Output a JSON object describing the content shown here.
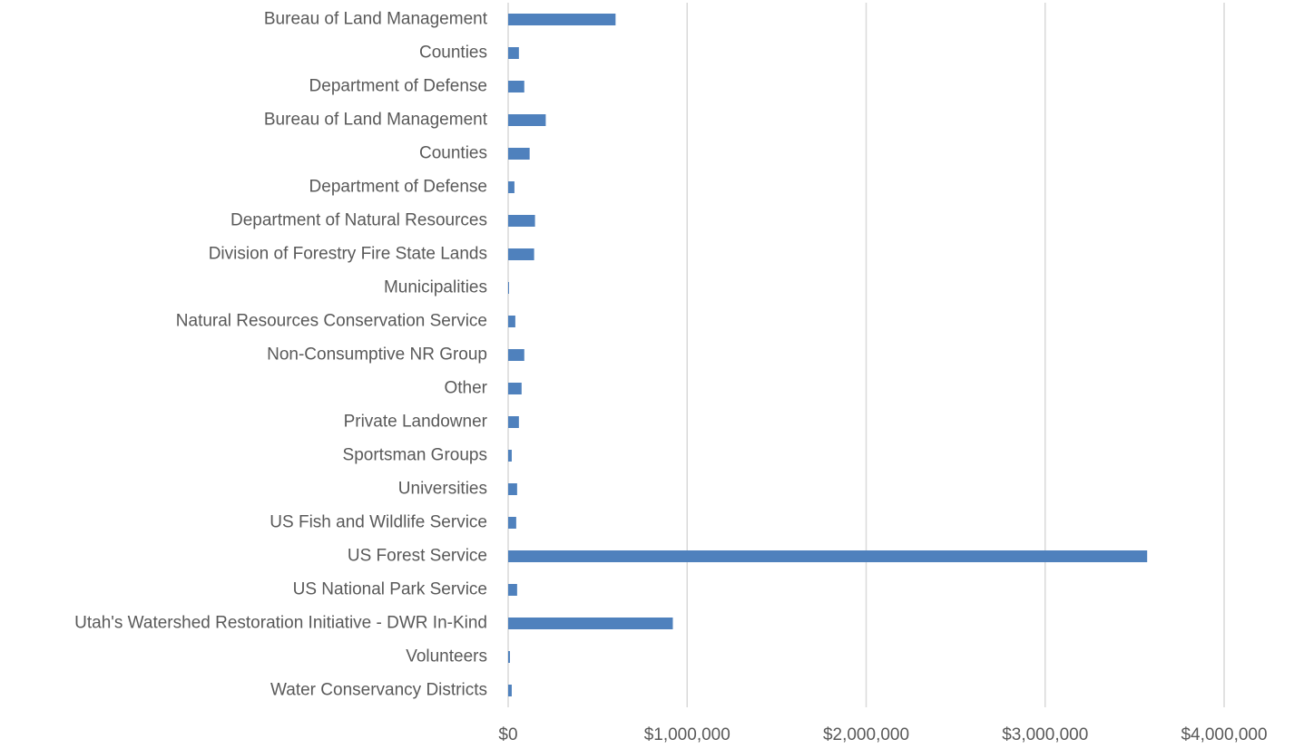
{
  "chart_data": {
    "type": "hbar",
    "categories": [
      "Bureau of Land Management",
      "Counties",
      "Department of Defense",
      "Bureau of Land Management",
      "Counties",
      "Department of Defense",
      "Department of Natural Resources",
      "Division of Forestry Fire State Lands",
      "Municipalities",
      "Natural Resources Conservation Service",
      "Non-Consumptive NR Group",
      "Other",
      "Private Landowner",
      "Sportsman Groups",
      "Universities",
      "US Fish and Wildlife Service",
      "US Forest Service",
      "US National Park Service",
      "Utah's Watershed Restoration Initiative - DWR In-Kind",
      "Volunteers",
      "Water Conservancy Districts"
    ],
    "values": [
      600000,
      60000,
      90000,
      210000,
      120000,
      35000,
      150000,
      145000,
      5000,
      40000,
      90000,
      75000,
      60000,
      20000,
      50000,
      45000,
      3570000,
      50000,
      920000,
      10000,
      20000
    ],
    "color": "#4f81bd",
    "xlim": [
      0,
      4000000
    ],
    "xticks": [
      {
        "value": 0,
        "label": "$0"
      },
      {
        "value": 1000000,
        "label": "$1,000,000"
      },
      {
        "value": 2000000,
        "label": "$2,000,000"
      },
      {
        "value": 3000000,
        "label": "$3,000,000"
      },
      {
        "value": 4000000,
        "label": "$4,000,000"
      }
    ],
    "grid": true
  }
}
